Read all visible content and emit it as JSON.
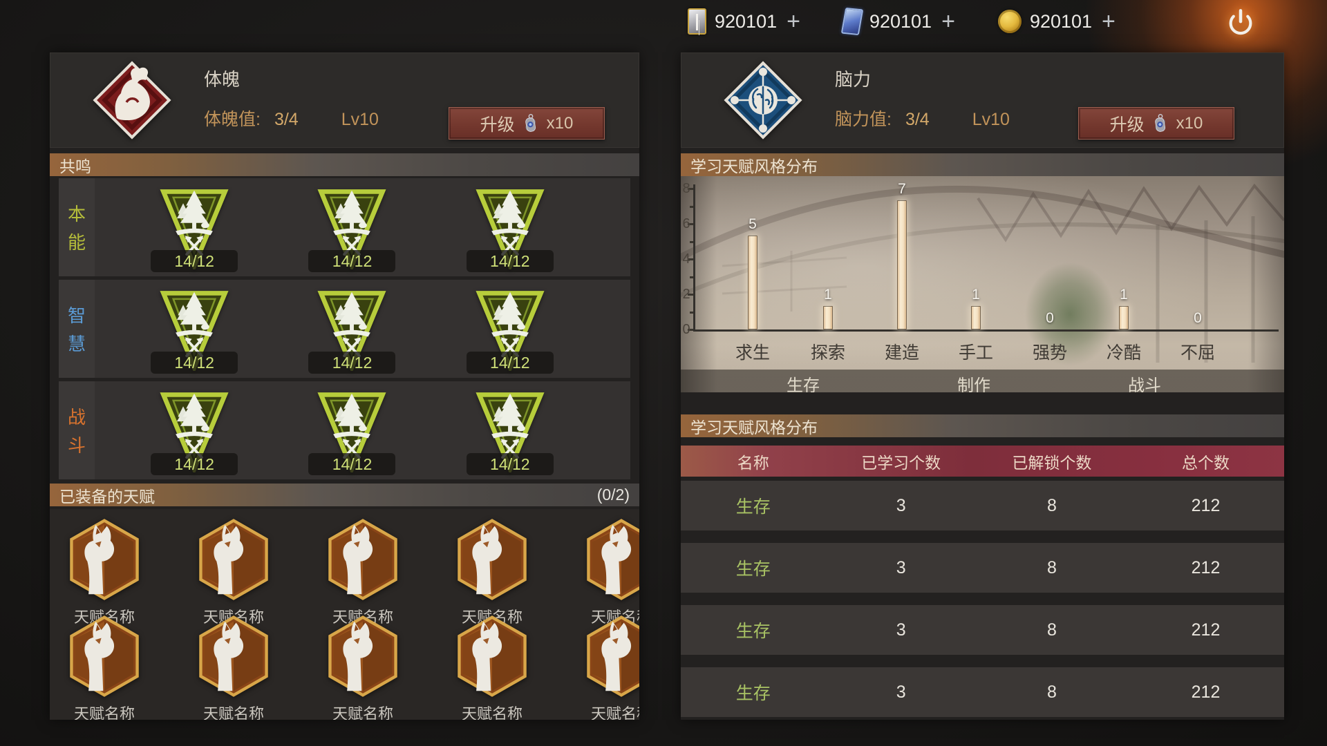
{
  "top_bar": {
    "currencies": [
      {
        "icon": "card-gold-icon",
        "amount": "920101",
        "add_label": "+"
      },
      {
        "icon": "card-blue-icon",
        "amount": "920101",
        "add_label": "+"
      },
      {
        "icon": "coin-icon",
        "amount": "920101",
        "add_label": "+"
      }
    ]
  },
  "left_panel": {
    "icon": "physique-icon",
    "title": "体魄",
    "stat_label": "体魄值:",
    "stat_value": "3/4",
    "level": "Lv10",
    "upgrade": {
      "label": "升级",
      "icon": "dog-tag-icon",
      "cost": "x10"
    },
    "resonance": {
      "header": "共鸣",
      "badge_icon": "pine-badge-icon",
      "rows": [
        {
          "label": "本能",
          "color": "#b5bd3a",
          "badges": [
            "14/12",
            "14/12",
            "14/12"
          ]
        },
        {
          "label": "智慧",
          "color": "#5b9bd5",
          "badges": [
            "14/12",
            "14/12",
            "14/12"
          ]
        },
        {
          "label": "战斗",
          "color": "#d9732e",
          "badges": [
            "14/12",
            "14/12",
            "14/12"
          ]
        }
      ]
    },
    "equipped": {
      "header": "已装备的天赋",
      "count": "(0/2)",
      "talent_icon": "cat-talent-icon",
      "talent_name": "天赋名称",
      "rows": [
        5,
        5
      ]
    }
  },
  "right_panel": {
    "icon": "brain-icon",
    "title": "脑力",
    "stat_label": "脑力值:",
    "stat_value": "3/4",
    "level": "Lv10",
    "upgrade": {
      "label": "升级",
      "icon": "dog-tag-icon",
      "cost": "x10"
    },
    "chart_header": "学习天赋风格分布",
    "table_header": "学习天赋风格分布",
    "table": {
      "columns": [
        "名称",
        "已学习个数",
        "已解锁个数",
        "总个数"
      ],
      "rows": [
        [
          "生存",
          "3",
          "8",
          "212"
        ],
        [
          "生存",
          "3",
          "8",
          "212"
        ],
        [
          "生存",
          "3",
          "8",
          "212"
        ],
        [
          "生存",
          "3",
          "8",
          "212"
        ]
      ]
    }
  },
  "chart_data": {
    "type": "bar",
    "title": "学习天赋风格分布",
    "categories": [
      "求生",
      "探索",
      "建造",
      "手工",
      "强势",
      "冷酷",
      "不屈"
    ],
    "values": [
      5,
      1,
      7,
      1,
      0,
      1,
      0
    ],
    "groups": [
      {
        "label": "生存",
        "span": [
          0,
          2
        ]
      },
      {
        "label": "制作",
        "span": [
          3,
          4
        ]
      },
      {
        "label": "战斗",
        "span": [
          5,
          6
        ]
      }
    ],
    "xlabel": "",
    "ylabel": "",
    "ylim": [
      0,
      8
    ],
    "yticks": [
      0,
      2,
      4,
      6,
      8
    ],
    "grid": false,
    "legend": "none",
    "bar_color": "#f2dfc2",
    "background": "warehouse-photo"
  },
  "colors": {
    "accent_tan": "#c2945a",
    "instinct_green": "#b5bd3a",
    "wisdom_blue": "#5b9bd5",
    "combat_orange": "#d9732e",
    "table_name_green": "#a9c364",
    "header_maroon": "#7e2e3b",
    "upgrade_button": "#74382e",
    "badge_text_green": "#cfe078"
  }
}
